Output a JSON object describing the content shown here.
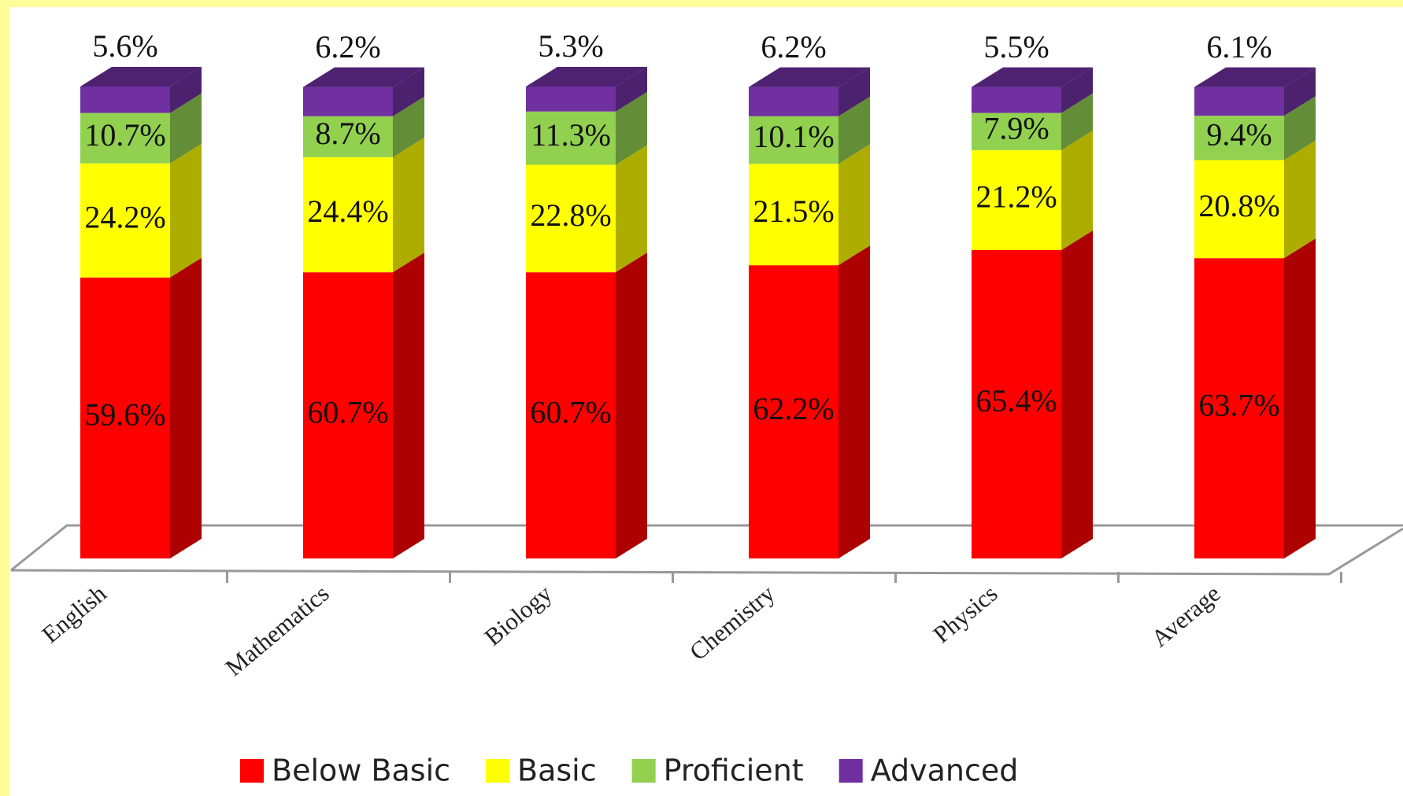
{
  "chart_data": {
    "type": "bar3d_stacked",
    "categories": [
      "English",
      "Mathematics",
      "Biology",
      "Chemistry",
      "Physics",
      "Average"
    ],
    "series": [
      {
        "name": "Below Basic",
        "color": "#ff0000",
        "values": [
          59.6,
          60.7,
          60.7,
          62.2,
          65.4,
          63.7
        ],
        "value_labels": [
          "59.6%",
          "60.7%",
          "60.7%",
          "62.2%",
          "65.4%",
          "63.7%"
        ]
      },
      {
        "name": "Basic",
        "color": "#ffff00",
        "values": [
          24.2,
          24.4,
          22.8,
          21.5,
          21.2,
          20.8
        ],
        "value_labels": [
          "24.2%",
          "24.4%",
          "22.8%",
          "21.5%",
          "21.2%",
          "20.8%"
        ]
      },
      {
        "name": "Proficient",
        "color": "#92d050",
        "values": [
          10.7,
          8.7,
          11.3,
          10.1,
          7.9,
          9.4
        ],
        "value_labels": [
          "10.7%",
          "8.7%",
          "11.3%",
          "10.1%",
          "7.9%",
          "9.4%"
        ]
      },
      {
        "name": "Advanced",
        "color": "#7030a0",
        "values": [
          5.6,
          6.2,
          5.3,
          6.2,
          5.5,
          6.1
        ],
        "value_labels": [
          "5.6%",
          "6.2%",
          "5.3%",
          "6.2%",
          "5.5%",
          "6.1%"
        ]
      }
    ],
    "legend": "bottom"
  }
}
